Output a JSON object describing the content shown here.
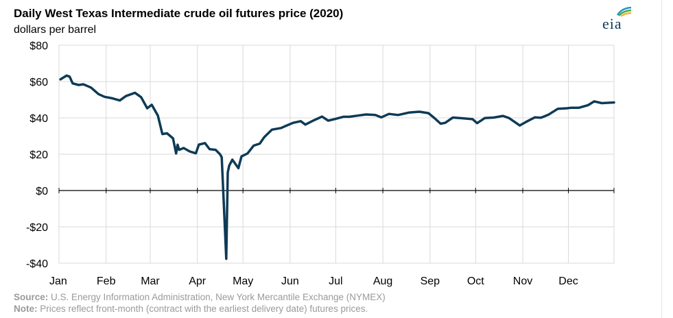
{
  "header": {
    "title": "Daily West Texas Intermediate crude oil futures price (2020)",
    "subtitle": "dollars per barrel",
    "logo_text": "eia"
  },
  "footer": {
    "source_label": "Source:",
    "source_text": "U.S. Energy Information Administration, New York Mercantile Exchange (NYMEX)",
    "note_label": "Note:",
    "note_text": "Prices reflect front-month (contract with the earliest delivery date) futures prices."
  },
  "colors": {
    "line": "#0e3a56",
    "grid": "#d9d9d9",
    "zero_line": "#000000",
    "axis_text": "#000000"
  },
  "chart_data": {
    "type": "line",
    "title": "Daily West Texas Intermediate crude oil futures price (2020)",
    "ylabel": "dollars per barrel",
    "ylim": [
      -40,
      80
    ],
    "yticks": [
      80,
      60,
      40,
      20,
      0,
      -20,
      -40
    ],
    "ytick_labels": [
      "$80",
      "$60",
      "$40",
      "$20",
      "$0",
      "-$20",
      "-$40"
    ],
    "xlim": [
      "2020-01-01",
      "2020-12-31"
    ],
    "xtick_labels": [
      "Jan",
      "Feb",
      "Mar",
      "Apr",
      "May",
      "Jun",
      "Jul",
      "Aug",
      "Sep",
      "Oct",
      "Nov",
      "Dec"
    ],
    "grid": true,
    "series": [
      {
        "x": [
          "2020-01-02",
          "2020-01-06",
          "2020-01-08",
          "2020-01-10",
          "2020-01-14",
          "2020-01-17",
          "2020-01-22",
          "2020-01-27",
          "2020-01-31",
          "2020-02-05",
          "2020-02-10",
          "2020-02-14",
          "2020-02-20",
          "2020-02-24",
          "2020-02-28",
          "2020-03-02",
          "2020-03-06",
          "2020-03-09",
          "2020-03-12",
          "2020-03-16",
          "2020-03-18",
          "2020-03-19",
          "2020-03-20",
          "2020-03-23",
          "2020-03-27",
          "2020-03-31",
          "2020-04-02",
          "2020-04-06",
          "2020-04-09",
          "2020-04-13",
          "2020-04-16",
          "2020-04-17",
          "2020-04-20",
          "2020-04-21",
          "2020-04-22",
          "2020-04-24",
          "2020-04-28",
          "2020-04-30",
          "2020-05-04",
          "2020-05-08",
          "2020-05-12",
          "2020-05-15",
          "2020-05-20",
          "2020-05-26",
          "2020-05-29",
          "2020-06-03",
          "2020-06-08",
          "2020-06-11",
          "2020-06-16",
          "2020-06-22",
          "2020-06-26",
          "2020-06-30",
          "2020-07-06",
          "2020-07-10",
          "2020-07-15",
          "2020-07-21",
          "2020-07-27",
          "2020-07-31",
          "2020-08-05",
          "2020-08-11",
          "2020-08-18",
          "2020-08-25",
          "2020-08-31",
          "2020-09-04",
          "2020-09-08",
          "2020-09-11",
          "2020-09-16",
          "2020-09-22",
          "2020-09-29",
          "2020-10-02",
          "2020-10-07",
          "2020-10-13",
          "2020-10-19",
          "2020-10-23",
          "2020-10-30",
          "2020-11-03",
          "2020-11-09",
          "2020-11-13",
          "2020-11-18",
          "2020-11-24",
          "2020-11-30",
          "2020-12-03",
          "2020-12-08",
          "2020-12-14",
          "2020-12-18",
          "2020-12-23",
          "2020-12-31"
        ],
        "values": [
          61.2,
          63.3,
          62.7,
          59.0,
          58.1,
          58.5,
          56.7,
          53.1,
          51.6,
          50.8,
          49.6,
          52.0,
          53.8,
          51.4,
          45.3,
          47.2,
          41.3,
          31.1,
          31.5,
          28.7,
          20.4,
          25.2,
          22.4,
          23.4,
          21.5,
          20.5,
          25.3,
          26.1,
          22.8,
          22.4,
          19.9,
          18.3,
          -37.6,
          10.0,
          13.8,
          17.0,
          12.3,
          18.8,
          20.4,
          24.7,
          25.8,
          29.4,
          33.5,
          34.4,
          35.5,
          37.3,
          38.2,
          36.3,
          38.4,
          40.7,
          38.5,
          39.3,
          40.6,
          40.6,
          41.2,
          41.9,
          41.6,
          40.3,
          42.2,
          41.6,
          42.9,
          43.4,
          42.6,
          39.8,
          36.8,
          37.3,
          40.2,
          39.8,
          39.3,
          37.1,
          39.9,
          40.2,
          41.1,
          39.9,
          35.8,
          37.7,
          40.3,
          40.1,
          41.8,
          45.0,
          45.3,
          45.6,
          45.6,
          47.0,
          49.1,
          48.1,
          48.5
        ]
      }
    ]
  }
}
